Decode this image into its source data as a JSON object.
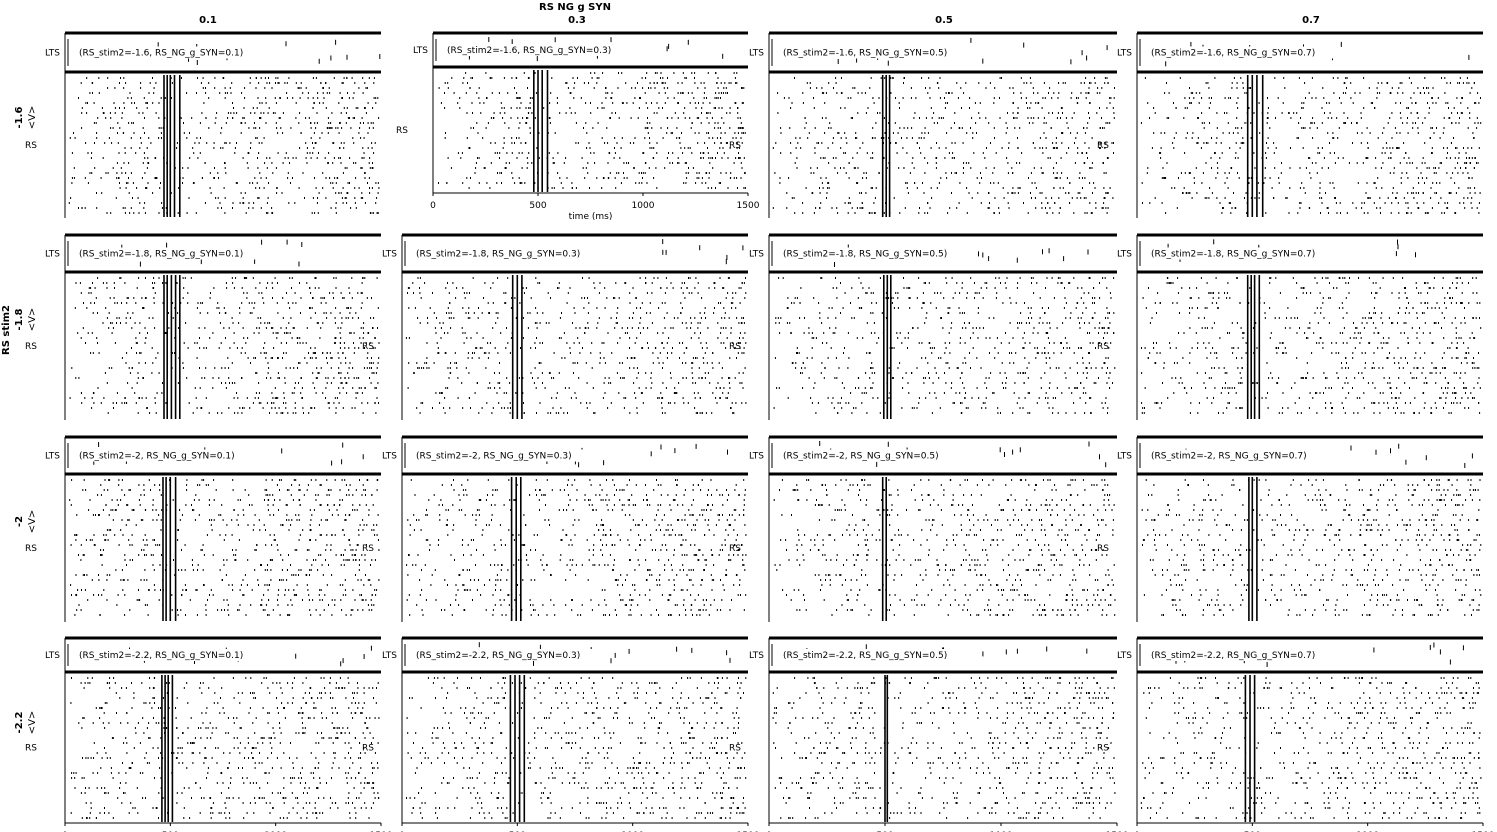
{
  "chart_data": {
    "type": "raster",
    "title": "RS NG g SYN",
    "row_group_label": "RS stim2",
    "column_values": [
      "0.1",
      "0.3",
      "0.5",
      "0.7"
    ],
    "row_values": [
      "-1.6",
      "-1.8",
      "-2",
      "-2.2"
    ],
    "row_ylabel": "<V>",
    "populations": [
      "LTS",
      "RS"
    ],
    "xlabel": "time (ms)",
    "xlim": [
      0,
      1500
    ],
    "xticks": [
      "0",
      "500",
      "1000",
      "1500"
    ],
    "panel_labels": [
      [
        "(RS_stim2=-1.6, RS_NG_g_SYN=0.1)",
        "(RS_stim2=-1.6, RS_NG_g_SYN=0.3)",
        "(RS_stim2=-1.6, RS_NG_g_SYN=0.5)",
        "(RS_stim2=-1.6, RS_NG_g_SYN=0.7)"
      ],
      [
        "(RS_stim2=-1.8, RS_NG_g_SYN=0.1)",
        "(RS_stim2=-1.8, RS_NG_g_SYN=0.3)",
        "(RS_stim2=-1.8, RS_NG_g_SYN=0.5)",
        "(RS_stim2=-1.8, RS_NG_g_SYN=0.7)"
      ],
      [
        "(RS_stim2=-2, RS_NG_g_SYN=0.1)",
        "(RS_stim2=-2, RS_NG_g_SYN=0.3)",
        "(RS_stim2=-2, RS_NG_g_SYN=0.5)",
        "(RS_stim2=-2, RS_NG_g_SYN=0.7)"
      ],
      [
        "(RS_stim2=-2.2, RS_NG_g_SYN=0.1)",
        "(RS_stim2=-2.2, RS_NG_g_SYN=0.3)",
        "(RS_stim2=-2.2, RS_NG_g_SYN=0.5)",
        "(RS_stim2=-2.2, RS_NG_g_SYN=0.7)"
      ]
    ],
    "synchronous_burst_times_ms": [
      [
        [
          470,
          485,
          500,
          520,
          545
        ],
        [
          480,
          500,
          520,
          545
        ],
        [
          490,
          505,
          520
        ],
        [
          480,
          500,
          520,
          545
        ]
      ],
      [
        [
          470,
          485,
          505,
          525,
          545
        ],
        [
          480,
          500,
          520
        ],
        [
          495,
          510,
          525
        ],
        [
          480,
          495,
          510,
          530
        ]
      ],
      [
        [
          465,
          480,
          500,
          525
        ],
        [
          475,
          495,
          515
        ],
        [
          490,
          505
        ],
        [
          485,
          500,
          520
        ]
      ],
      [
        [
          460,
          475,
          490,
          510
        ],
        [
          470,
          490,
          510,
          530
        ],
        [
          500,
          510
        ],
        [
          470,
          490,
          510
        ]
      ]
    ],
    "grid": false
  }
}
